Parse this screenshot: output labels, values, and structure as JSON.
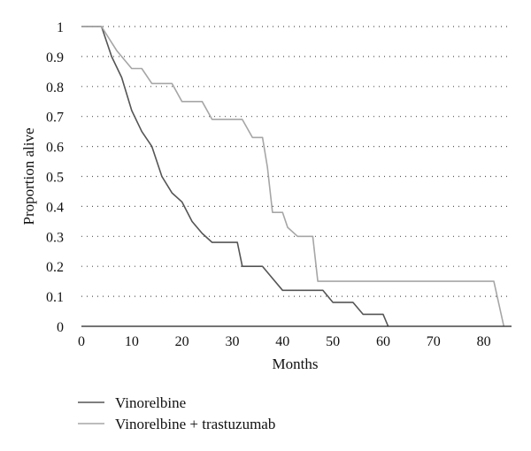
{
  "chart_data": {
    "type": "line",
    "title": "",
    "xlabel": "Months",
    "ylabel": "Proportion alive",
    "xlim": [
      0,
      85
    ],
    "ylim": [
      0,
      1
    ],
    "x_ticks": [
      "0",
      "10",
      "20",
      "30",
      "40",
      "50",
      "60",
      "70",
      "80"
    ],
    "y_ticks": [
      "0",
      "0.1",
      "0.2",
      "0.3",
      "0.4",
      "0.5",
      "0.6",
      "0.7",
      "0.8",
      "0.9",
      "1"
    ],
    "grid": true,
    "legend_position": "bottom-left",
    "series": [
      {
        "name": "Vinorelbine",
        "color": "#555555",
        "x": [
          0,
          4,
          6,
          8,
          10,
          12,
          14,
          16,
          18,
          20,
          22,
          24,
          26,
          28,
          30,
          31,
          32,
          34,
          36,
          38,
          40,
          42,
          44,
          46,
          48,
          50,
          52,
          54,
          56,
          58,
          60,
          61
        ],
        "y": [
          1,
          1,
          0.9,
          0.83,
          0.72,
          0.65,
          0.6,
          0.5,
          0.445,
          0.415,
          0.35,
          0.31,
          0.28,
          0.28,
          0.28,
          0.28,
          0.2,
          0.2,
          0.2,
          0.16,
          0.12,
          0.12,
          0.12,
          0.12,
          0.12,
          0.08,
          0.08,
          0.08,
          0.04,
          0.04,
          0.04,
          0
        ]
      },
      {
        "name": "Vinorelbine + trastuzumab",
        "color": "#a6a6a6",
        "x": [
          0,
          4,
          7,
          10,
          12,
          14,
          16,
          18,
          20,
          22,
          24,
          26,
          28,
          30,
          32,
          34,
          36,
          37,
          38,
          40,
          41,
          43,
          46,
          47,
          50,
          60,
          70,
          80,
          82,
          84
        ],
        "y": [
          1,
          1,
          0.92,
          0.86,
          0.86,
          0.81,
          0.81,
          0.81,
          0.75,
          0.75,
          0.75,
          0.69,
          0.69,
          0.69,
          0.69,
          0.63,
          0.63,
          0.53,
          0.38,
          0.38,
          0.33,
          0.3,
          0.3,
          0.15,
          0.15,
          0.15,
          0.15,
          0.15,
          0.15,
          0
        ]
      }
    ]
  }
}
